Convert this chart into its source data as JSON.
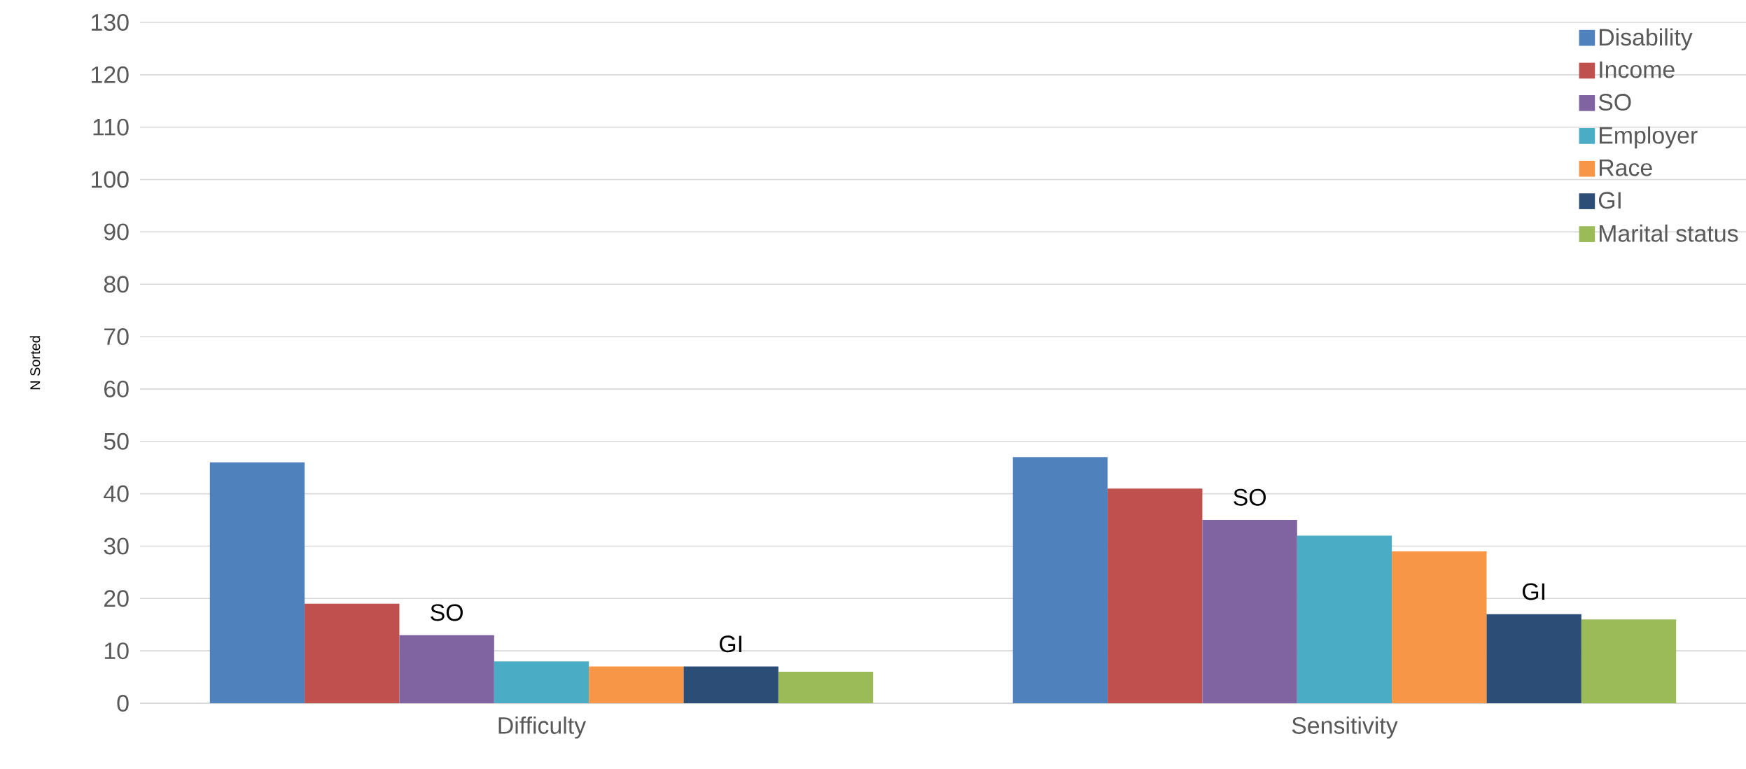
{
  "chart_data": {
    "type": "bar",
    "ylabel": "N Sorted",
    "categories": [
      "Difficulty",
      "Sensitivity"
    ],
    "series": [
      {
        "name": "Disability",
        "color": "#4f81bd",
        "values": [
          46,
          47
        ]
      },
      {
        "name": "Income",
        "color": "#c0504d",
        "values": [
          19,
          41
        ]
      },
      {
        "name": "SO",
        "color": "#8064a2",
        "values": [
          13,
          35
        ]
      },
      {
        "name": "Employer",
        "color": "#4bacc6",
        "values": [
          8,
          32
        ]
      },
      {
        "name": "Race",
        "color": "#f79646",
        "values": [
          7,
          29
        ]
      },
      {
        "name": "GI",
        "color": "#2c4d75",
        "values": [
          7,
          17
        ]
      },
      {
        "name": "Marital status",
        "color": "#9bbb59",
        "values": [
          6,
          16
        ]
      }
    ],
    "ylim": [
      0,
      130
    ],
    "yticks": [
      0,
      10,
      20,
      30,
      40,
      50,
      60,
      70,
      80,
      90,
      100,
      110,
      120,
      130
    ],
    "grid": "y",
    "legend": "top right",
    "annotations": [
      "SO",
      "GI",
      "SO",
      "GI"
    ]
  }
}
